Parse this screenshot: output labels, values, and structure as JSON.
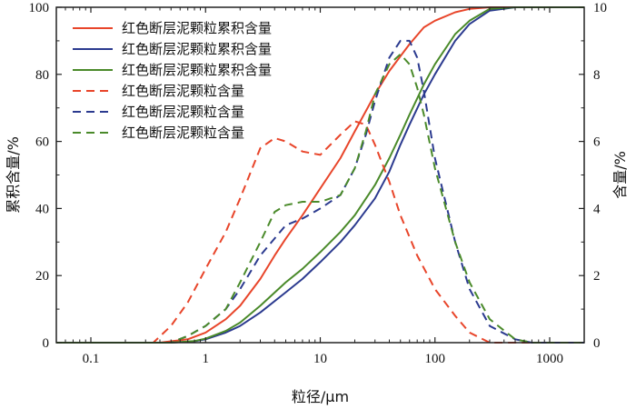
{
  "chart_data": {
    "type": "line",
    "xlabel": "粒径/μm",
    "ylabel_left": "累积含量/%",
    "ylabel_right": "含量/%",
    "x_scale": "log",
    "xlim": [
      0.05,
      2000
    ],
    "ylim_left": [
      0,
      100
    ],
    "ylim_right": [
      0,
      10
    ],
    "x_ticks": [
      0.1,
      1,
      10,
      100,
      1000
    ],
    "x_tick_labels": [
      "0.1",
      "1",
      "10",
      "100",
      "1000"
    ],
    "y_left_ticks": [
      0,
      20,
      40,
      60,
      80,
      100
    ],
    "y_left_tick_labels": [
      "0",
      "20",
      "40",
      "60",
      "80",
      "100"
    ],
    "y_right_ticks": [
      0,
      2,
      4,
      6,
      8,
      10
    ],
    "y_right_tick_labels": [
      "0",
      "2",
      "4",
      "6",
      "8",
      "10"
    ],
    "grid": false,
    "legend_position": "top-left",
    "series": [
      {
        "name": "红色断层泥颗粒累积含量",
        "color": "#e8452a",
        "dash": "solid",
        "axis": "left",
        "x": [
          0.05,
          0.4,
          0.7,
          1,
          1.5,
          2,
          3,
          4,
          5,
          7,
          10,
          15,
          20,
          30,
          40,
          60,
          80,
          100,
          150,
          200,
          300,
          500,
          1000,
          2000
        ],
        "y": [
          0,
          0,
          1,
          3,
          7,
          11,
          19,
          26,
          31,
          38,
          46,
          55,
          63,
          74,
          81,
          89,
          94,
          96,
          98.5,
          99.5,
          100,
          100,
          100,
          100
        ]
      },
      {
        "name": "红色断层泥颗粒累积含量",
        "color": "#2b3a8f",
        "dash": "solid",
        "axis": "left",
        "x": [
          0.05,
          0.5,
          0.8,
          1,
          1.5,
          2,
          3,
          5,
          7,
          10,
          15,
          20,
          30,
          40,
          50,
          60,
          80,
          100,
          150,
          200,
          300,
          500,
          1000,
          2000
        ],
        "y": [
          0,
          0,
          0.4,
          1,
          3,
          5,
          9,
          15,
          19,
          24,
          30,
          35,
          43,
          51,
          59,
          65,
          74,
          80,
          90,
          95,
          99,
          100,
          100,
          100
        ]
      },
      {
        "name": "红色断层泥颗粒累积含量",
        "color": "#4a8a2a",
        "dash": "solid",
        "axis": "left",
        "x": [
          0.05,
          0.5,
          0.8,
          1,
          1.5,
          2,
          3,
          5,
          7,
          10,
          15,
          20,
          30,
          40,
          50,
          60,
          80,
          100,
          150,
          200,
          300,
          500,
          1000,
          2000
        ],
        "y": [
          0,
          0,
          0.5,
          1.2,
          3.5,
          6,
          11,
          18,
          22,
          27,
          33,
          38,
          47,
          55,
          62,
          68,
          77,
          83,
          92,
          96,
          99.5,
          100,
          100,
          100
        ]
      },
      {
        "name": "红色断层泥颗粒含量",
        "color": "#e8452a",
        "dash": "dashed",
        "axis": "right",
        "x": [
          0.05,
          0.35,
          0.5,
          0.7,
          1,
          1.5,
          2,
          3,
          4,
          5,
          7,
          10,
          15,
          20,
          25,
          30,
          40,
          50,
          70,
          100,
          150,
          200,
          300,
          500,
          1000,
          2000
        ],
        "y": [
          0,
          0,
          0.5,
          1.2,
          2.2,
          3.3,
          4.3,
          5.8,
          6.1,
          6.0,
          5.7,
          5.6,
          6.2,
          6.6,
          6.5,
          5.9,
          4.8,
          3.8,
          2.6,
          1.6,
          0.8,
          0.3,
          0,
          0,
          0,
          0
        ]
      },
      {
        "name": "红色断层泥颗粒含量",
        "color": "#2b3a8f",
        "dash": "dashed",
        "axis": "right",
        "x": [
          0.05,
          0.5,
          0.7,
          1,
          1.5,
          2,
          3,
          5,
          7,
          10,
          15,
          20,
          25,
          30,
          40,
          50,
          60,
          70,
          80,
          100,
          150,
          200,
          300,
          500,
          700,
          1000,
          2000
        ],
        "y": [
          0,
          0,
          0.2,
          0.5,
          1.0,
          1.6,
          2.6,
          3.5,
          3.7,
          4.0,
          4.4,
          5.2,
          6.2,
          7.2,
          8.5,
          9.0,
          9.0,
          8.5,
          7.5,
          5.5,
          3.0,
          1.6,
          0.5,
          0.1,
          0,
          0,
          0
        ]
      },
      {
        "name": "红色断层泥颗粒含量",
        "color": "#4a8a2a",
        "dash": "dashed",
        "axis": "right",
        "x": [
          0.05,
          0.5,
          0.7,
          1,
          1.5,
          2,
          3,
          4,
          5,
          7,
          10,
          15,
          20,
          25,
          30,
          40,
          50,
          60,
          70,
          80,
          100,
          150,
          200,
          300,
          500,
          700,
          1000,
          2000
        ],
        "y": [
          0,
          0,
          0.2,
          0.5,
          1.0,
          1.8,
          3.0,
          3.9,
          4.1,
          4.2,
          4.2,
          4.4,
          5.2,
          6.3,
          7.4,
          8.3,
          8.6,
          8.3,
          7.6,
          6.8,
          5.2,
          3.0,
          1.8,
          0.7,
          0.1,
          0,
          0,
          0
        ]
      }
    ]
  }
}
